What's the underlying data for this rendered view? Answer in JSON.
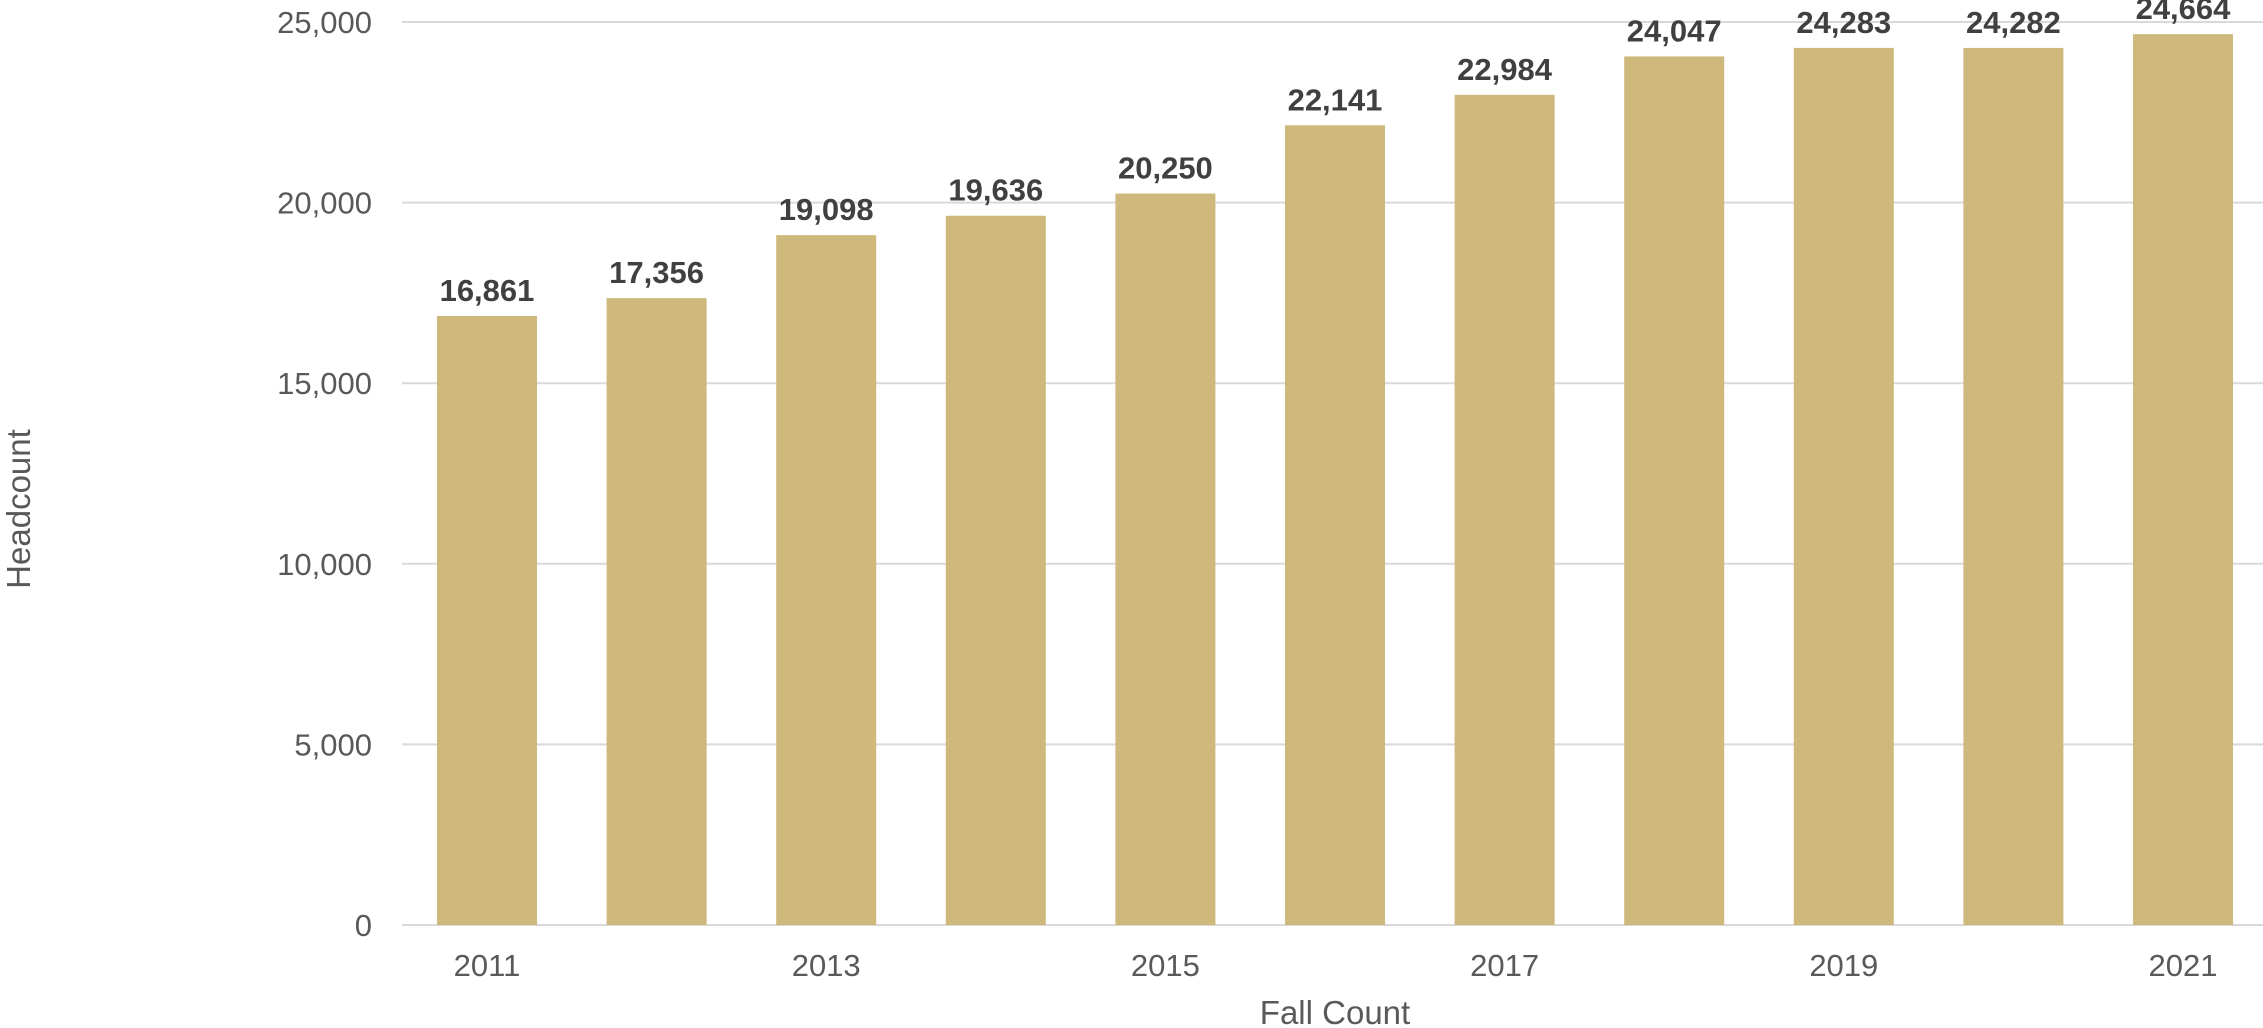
{
  "chart_data": {
    "type": "bar",
    "categories": [
      "2011",
      "2012",
      "2013",
      "2014",
      "2015",
      "2016",
      "2017",
      "2018",
      "2019",
      "2020",
      "2021"
    ],
    "values": [
      16861,
      17356,
      19098,
      19636,
      20250,
      22141,
      22984,
      24047,
      24283,
      24282,
      24664
    ],
    "value_labels": [
      "16,861",
      "17,356",
      "19,098",
      "19,636",
      "20,250",
      "22,141",
      "22,984",
      "24,047",
      "24,283",
      "24,282",
      "24,664"
    ],
    "x_tick_labels": [
      "2011",
      "",
      "2013",
      "",
      "2015",
      "",
      "2017",
      "",
      "2019",
      "",
      "2021"
    ],
    "y_ticks": [
      0,
      5000,
      10000,
      15000,
      20000,
      25000
    ],
    "y_tick_labels": [
      "0",
      "5,000",
      "10,000",
      "15,000",
      "20,000",
      "25,000"
    ],
    "ylim": [
      0,
      25000
    ],
    "xlabel": "Fall Count",
    "ylabel": "Headcount",
    "title": "",
    "grid": true,
    "legend": "none",
    "bar_color": "#cfb87c",
    "gridline_color": "#d9d9d9",
    "label_color": "#404040",
    "axis_text_color": "#595959"
  }
}
